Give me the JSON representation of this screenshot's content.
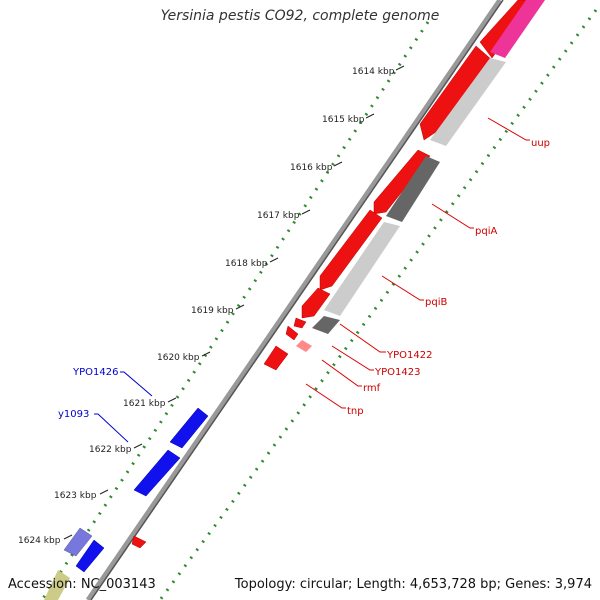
{
  "title": "Yersinia pestis CO92, complete genome",
  "footer": {
    "accession": "Accession: NC_003143",
    "summary": "Topology: circular; Length: 4,653,728 bp; Genes: 3,974"
  },
  "colors": {
    "backbone": "#888888",
    "ticks": "#2e8b2e",
    "forward_label": "#0000cc",
    "reverse_label": "#cc0000"
  },
  "ticks": [
    "1614 kbp",
    "1615 kbp",
    "1616 kbp",
    "1617 kbp",
    "1618 kbp",
    "1619 kbp",
    "1620 kbp",
    "1621 kbp",
    "1622 kbp",
    "1623 kbp",
    "1624 kbp"
  ],
  "labels": {
    "uup": "uup",
    "pqiA": "pqiA",
    "pqiB": "pqiB",
    "YPO1422": "YPO1422",
    "YPO1423": "YPO1423",
    "rmf": "rmf",
    "tnp": "tnp",
    "YPO1426": "YPO1426",
    "y1093": "y1093"
  }
}
